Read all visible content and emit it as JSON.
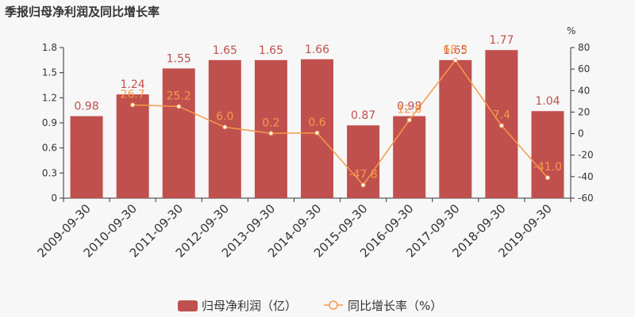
{
  "title": "季报归母净利润及同比增长率",
  "right_axis_unit": "%",
  "colors": {
    "bar": "#c0504d",
    "line": "#f59a4a",
    "background": "#f7f7f7",
    "axis": "#333333"
  },
  "legend": [
    {
      "label": "归母净利润（亿）",
      "icon": "bar-swatch-icon"
    },
    {
      "label": "同比增长率（%）",
      "icon": "line-marker-icon"
    }
  ],
  "chart_data": {
    "type": "bar",
    "categories": [
      "2009-09-30",
      "2010-09-30",
      "2011-09-30",
      "2012-09-30",
      "2013-09-30",
      "2014-09-30",
      "2015-09-30",
      "2016-09-30",
      "2017-09-30",
      "2018-09-30",
      "2019-09-30"
    ],
    "series": [
      {
        "name": "归母净利润（亿）",
        "type": "bar",
        "axis": "left",
        "values": [
          0.98,
          1.24,
          1.55,
          1.65,
          1.65,
          1.66,
          0.87,
          0.98,
          1.65,
          1.77,
          1.04
        ],
        "labels": [
          "0.98",
          "1.24",
          "1.55",
          "1.65",
          "1.65",
          "1.66",
          "0.87",
          "0.98",
          "1.65",
          "1.77",
          "1.04"
        ]
      },
      {
        "name": "同比增长率（%）",
        "type": "line",
        "axis": "right",
        "values": [
          null,
          26.7,
          25.2,
          6.0,
          0.2,
          0.6,
          -47.8,
          12.6,
          68.3,
          7.4,
          -41.0
        ],
        "labels": [
          "",
          "26.7",
          "25.2",
          "6.0",
          "0.2",
          "0.6",
          "-47.8",
          "12.6",
          "68.3",
          "7.4",
          "-41.0"
        ]
      }
    ],
    "left_axis": {
      "ylim": [
        0,
        1.8
      ],
      "ticks": [
        "0",
        "0.3",
        "0.6",
        "0.9",
        "1.2",
        "1.5",
        "1.8"
      ]
    },
    "right_axis": {
      "ylim": [
        -60,
        80
      ],
      "ticks": [
        "-60",
        "-40",
        "-20",
        "0",
        "20",
        "40",
        "60",
        "80"
      ]
    },
    "legend_position": "bottom",
    "grid": false
  }
}
